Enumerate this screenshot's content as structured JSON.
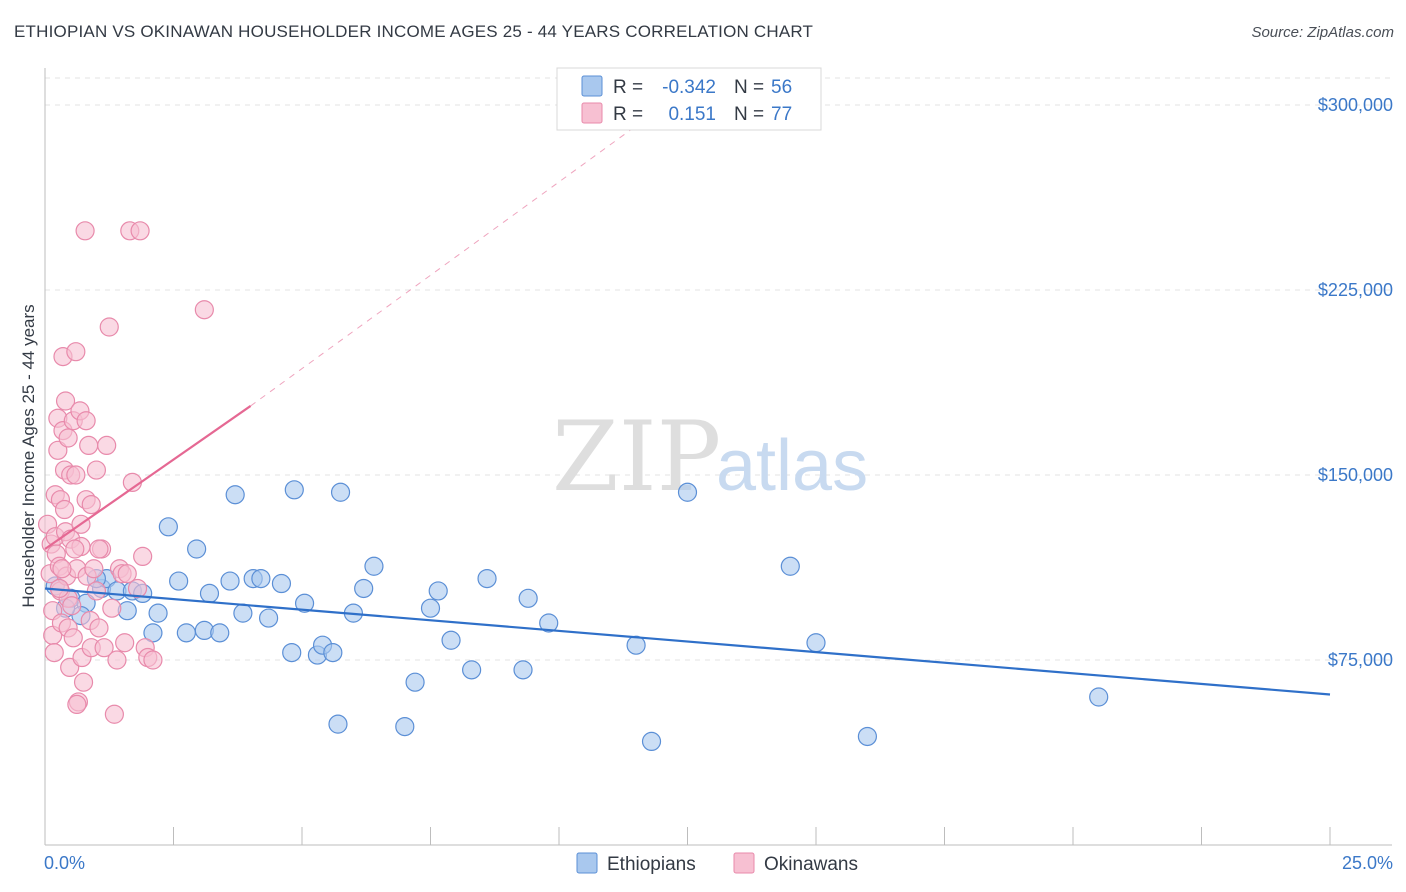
{
  "header": {
    "title": "ETHIOPIAN VS OKINAWAN HOUSEHOLDER INCOME AGES 25 - 44 YEARS CORRELATION CHART",
    "source": "Source: ZipAtlas.com"
  },
  "watermark": {
    "part1": "ZIP",
    "part2": "atlas"
  },
  "legend_box": {
    "rows": [
      {
        "r_label": "R =",
        "r_value": "-0.342",
        "n_label": "N =",
        "n_value": "56"
      },
      {
        "r_label": "R =",
        "r_value": "0.151",
        "n_label": "N =",
        "n_value": "77"
      }
    ]
  },
  "colors": {
    "ethiopian_fill": "#a9c8ee",
    "ethiopian_stroke": "#5b8fd6",
    "ethiopian_line": "#2f70c9",
    "okinawan_fill": "#f7c0d2",
    "okinawan_stroke": "#e88aab",
    "okinawan_line": "#e56893",
    "axis_label": "#3b78c8"
  },
  "chart_data": {
    "type": "scatter",
    "title": "ETHIOPIAN VS OKINAWAN HOUSEHOLDER INCOME AGES 25 - 44 YEARS CORRELATION CHART",
    "xlabel": "",
    "ylabel": "Householder Income Ages 25 - 44 years",
    "xlim": [
      0,
      25
    ],
    "ylim": [
      0,
      315000
    ],
    "x_tick_labels": [
      "0.0%",
      "25.0%"
    ],
    "y_ticks": [
      75000,
      150000,
      225000,
      300000
    ],
    "y_tick_labels": [
      "$75,000",
      "$150,000",
      "$225,000",
      "$300,000"
    ],
    "legend": [
      "Ethiopians",
      "Okinawans"
    ],
    "series": [
      {
        "name": "Ethiopians",
        "r": -0.342,
        "n": 56,
        "trend": {
          "x": [
            0,
            25
          ],
          "y": [
            104000,
            61000
          ]
        },
        "points": [
          [
            0.2,
            105000
          ],
          [
            0.5,
            100000
          ],
          [
            0.8,
            98000
          ],
          [
            1.1,
            104000
          ],
          [
            1.2,
            108000
          ],
          [
            1.4,
            103000
          ],
          [
            1.6,
            95000
          ],
          [
            1.7,
            103000
          ],
          [
            1.9,
            102000
          ],
          [
            2.1,
            86000
          ],
          [
            2.2,
            94000
          ],
          [
            2.4,
            129000
          ],
          [
            2.6,
            107000
          ],
          [
            2.75,
            86000
          ],
          [
            2.95,
            120000
          ],
          [
            3.1,
            87000
          ],
          [
            3.2,
            102000
          ],
          [
            3.4,
            86000
          ],
          [
            3.6,
            107000
          ],
          [
            3.7,
            142000
          ],
          [
            3.85,
            94000
          ],
          [
            4.05,
            108000
          ],
          [
            4.2,
            108000
          ],
          [
            4.35,
            92000
          ],
          [
            4.6,
            106000
          ],
          [
            4.8,
            78000
          ],
          [
            4.85,
            144000
          ],
          [
            5.05,
            98000
          ],
          [
            5.3,
            77000
          ],
          [
            5.4,
            81000
          ],
          [
            5.6,
            78000
          ],
          [
            5.7,
            49000
          ],
          [
            5.75,
            143000
          ],
          [
            6.0,
            94000
          ],
          [
            6.2,
            104000
          ],
          [
            6.4,
            113000
          ],
          [
            7.0,
            48000
          ],
          [
            7.2,
            66000
          ],
          [
            7.5,
            96000
          ],
          [
            7.65,
            103000
          ],
          [
            7.9,
            83000
          ],
          [
            8.3,
            71000
          ],
          [
            8.6,
            108000
          ],
          [
            9.3,
            71000
          ],
          [
            9.4,
            100000
          ],
          [
            9.8,
            90000
          ],
          [
            11.5,
            81000
          ],
          [
            11.8,
            42000
          ],
          [
            12.5,
            143000
          ],
          [
            14.5,
            113000
          ],
          [
            15.0,
            82000
          ],
          [
            16.0,
            44000
          ],
          [
            20.5,
            60000
          ],
          [
            0.7,
            93000
          ],
          [
            0.4,
            96000
          ],
          [
            1.0,
            108000
          ]
        ]
      },
      {
        "name": "Okinawans",
        "r": 0.151,
        "n": 77,
        "trend": {
          "x": [
            0,
            4.0
          ],
          "y": [
            120000,
            178000
          ]
        },
        "trend_extension": {
          "x": [
            4.0,
            11.4
          ],
          "y": [
            178000,
            290000
          ]
        },
        "points": [
          [
            0.05,
            130000
          ],
          [
            0.1,
            110000
          ],
          [
            0.12,
            122000
          ],
          [
            0.15,
            95000
          ],
          [
            0.15,
            85000
          ],
          [
            0.2,
            142000
          ],
          [
            0.2,
            125000
          ],
          [
            0.22,
            118000
          ],
          [
            0.25,
            160000
          ],
          [
            0.25,
            173000
          ],
          [
            0.28,
            113000
          ],
          [
            0.3,
            103000
          ],
          [
            0.3,
            140000
          ],
          [
            0.32,
            90000
          ],
          [
            0.35,
            198000
          ],
          [
            0.35,
            168000
          ],
          [
            0.38,
            152000
          ],
          [
            0.38,
            136000
          ],
          [
            0.4,
            180000
          ],
          [
            0.4,
            127000
          ],
          [
            0.42,
            109000
          ],
          [
            0.45,
            100000
          ],
          [
            0.45,
            88000
          ],
          [
            0.48,
            72000
          ],
          [
            0.5,
            150000
          ],
          [
            0.5,
            124000
          ],
          [
            0.52,
            97000
          ],
          [
            0.55,
            172000
          ],
          [
            0.55,
            84000
          ],
          [
            0.6,
            200000
          ],
          [
            0.6,
            150000
          ],
          [
            0.62,
            112000
          ],
          [
            0.65,
            58000
          ],
          [
            0.68,
            176000
          ],
          [
            0.7,
            121000
          ],
          [
            0.72,
            76000
          ],
          [
            0.75,
            66000
          ],
          [
            0.78,
            249000
          ],
          [
            0.8,
            172000
          ],
          [
            0.8,
            140000
          ],
          [
            0.82,
            109000
          ],
          [
            0.85,
            162000
          ],
          [
            0.88,
            91000
          ],
          [
            0.9,
            80000
          ],
          [
            0.95,
            112000
          ],
          [
            1.0,
            103000
          ],
          [
            1.05,
            88000
          ],
          [
            1.1,
            120000
          ],
          [
            1.15,
            80000
          ],
          [
            1.2,
            162000
          ],
          [
            1.25,
            210000
          ],
          [
            1.3,
            96000
          ],
          [
            1.35,
            53000
          ],
          [
            1.4,
            75000
          ],
          [
            1.45,
            112000
          ],
          [
            1.5,
            110000
          ],
          [
            1.55,
            82000
          ],
          [
            1.6,
            110000
          ],
          [
            1.65,
            249000
          ],
          [
            1.7,
            147000
          ],
          [
            1.8,
            104000
          ],
          [
            1.85,
            249000
          ],
          [
            1.9,
            117000
          ],
          [
            1.95,
            80000
          ],
          [
            2.0,
            76000
          ],
          [
            2.1,
            75000
          ],
          [
            3.1,
            217000
          ],
          [
            0.18,
            78000
          ],
          [
            0.28,
            104000
          ],
          [
            0.33,
            112000
          ],
          [
            0.58,
            120000
          ],
          [
            0.62,
            57000
          ],
          [
            0.7,
            130000
          ],
          [
            0.9,
            138000
          ],
          [
            1.0,
            152000
          ],
          [
            1.05,
            120000
          ],
          [
            0.45,
            165000
          ]
        ]
      }
    ]
  }
}
